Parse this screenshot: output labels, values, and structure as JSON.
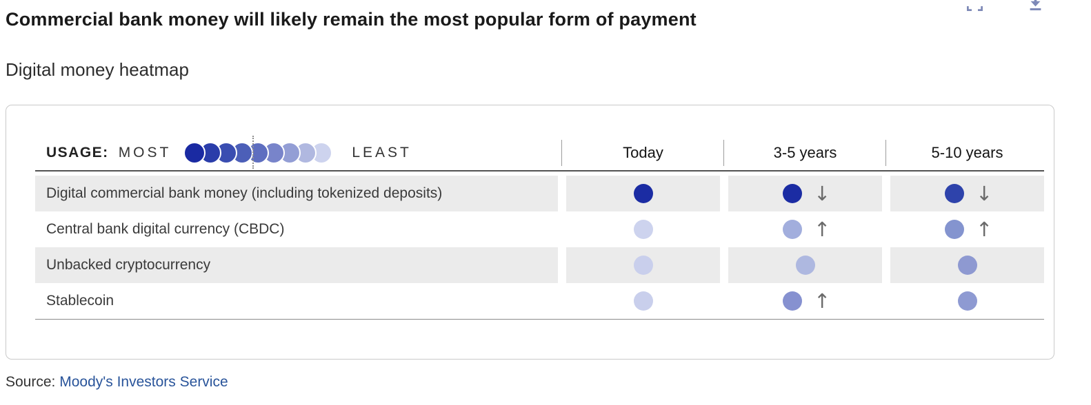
{
  "header": {
    "title": "Commercial bank money will likely remain the most popular form of payment",
    "subtitle": "Digital money heatmap"
  },
  "toolbar": {
    "fullscreen_icon": "fullscreen-expand",
    "download_icon": "download-chart"
  },
  "theme": {
    "accent": "#7e89b7",
    "link": "#29549a",
    "stripe": "#ebebeb",
    "arrow": "#6b6b6b"
  },
  "legend": {
    "usage_label": "USAGE:",
    "most_label": "MOST",
    "least_label": "LEAST",
    "scale_colors": [
      "#1a2aa2",
      "#2a3daa",
      "#3a4db1",
      "#4c5fb8",
      "#5e6ec0",
      "#7884ca",
      "#939ed5",
      "#b0b8e0",
      "#cdd3ee"
    ]
  },
  "columns": [
    "Today",
    "3-5 years",
    "5-10 years"
  ],
  "rows": [
    {
      "label": "Digital commercial bank money (including tokenized deposits)",
      "cells": [
        {
          "level": 1,
          "color": "#1b2ca3",
          "trend": "none"
        },
        {
          "level": 1,
          "color": "#1b2ca3",
          "trend": "down"
        },
        {
          "level": 2,
          "color": "#2e43ab",
          "trend": "down"
        }
      ]
    },
    {
      "label": "Central bank digital currency (CBDC)",
      "cells": [
        {
          "level": 9,
          "color": "#cdd3ee",
          "trend": "none"
        },
        {
          "level": 8,
          "color": "#a2aedd",
          "trend": "up"
        },
        {
          "level": 7,
          "color": "#8494cf",
          "trend": "up"
        }
      ]
    },
    {
      "label": "Unbacked cryptocurrency",
      "cells": [
        {
          "level": 9,
          "color": "#c9cfec",
          "trend": "none"
        },
        {
          "level": 8,
          "color": "#aeb8e0",
          "trend": "none"
        },
        {
          "level": 7,
          "color": "#8e99d1",
          "trend": "none"
        }
      ]
    },
    {
      "label": "Stablecoin",
      "cells": [
        {
          "level": 9,
          "color": "#c9cfec",
          "trend": "none"
        },
        {
          "level": 7,
          "color": "#8691d0",
          "trend": "up"
        },
        {
          "level": 7,
          "color": "#8e9ad2",
          "trend": "none"
        }
      ]
    }
  ],
  "source": {
    "prefix": "Source: ",
    "link_text": "Moody's Investors Service"
  },
  "chart_data": {
    "type": "heatmap",
    "title": "Commercial bank money will likely remain the most popular form of payment",
    "subtitle": "Digital money heatmap",
    "columns": [
      "Today",
      "3-5 years",
      "5-10 years"
    ],
    "rows": [
      "Digital commercial bank money (including tokenized deposits)",
      "Central bank digital currency (CBDC)",
      "Unbacked cryptocurrency",
      "Stablecoin"
    ],
    "scale": "usage level 1 = most usage (dark blue) to 9 = least usage (light lavender)",
    "values": [
      [
        1,
        1,
        2
      ],
      [
        9,
        8,
        7
      ],
      [
        9,
        8,
        7
      ],
      [
        9,
        7,
        7
      ]
    ],
    "trends": [
      [
        "",
        "down",
        "down"
      ],
      [
        "",
        "up",
        "up"
      ],
      [
        "",
        "",
        ""
      ],
      [
        "",
        "up",
        ""
      ]
    ],
    "legend_position": "top-left",
    "source": "Moody's Investors Service"
  }
}
